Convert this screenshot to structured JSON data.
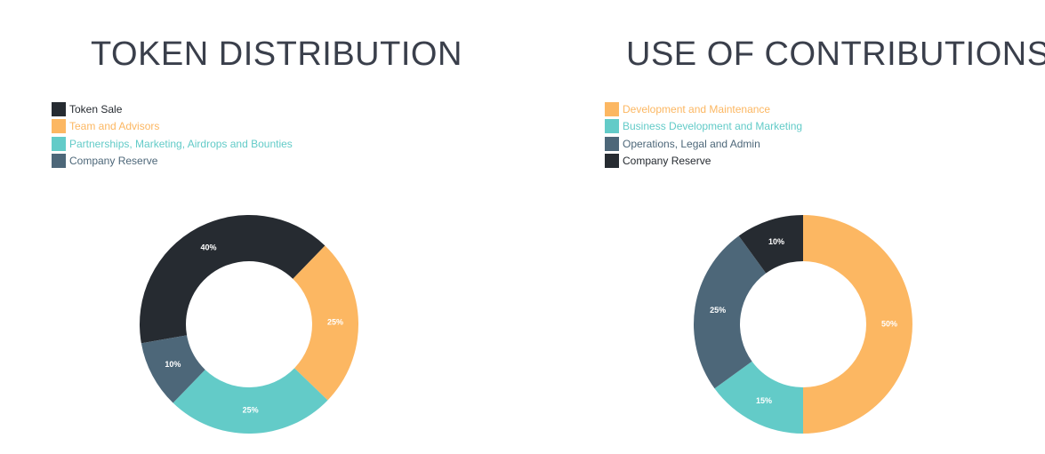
{
  "chart_data": [
    {
      "type": "pie",
      "title": "TOKEN DISTRIBUTION",
      "categories": [
        "Token Sale",
        "Team and Advisors",
        "Partnerships, Marketing, Airdrops and Bounties",
        "Company Reserve"
      ],
      "values": [
        40,
        25,
        25,
        10
      ],
      "value_labels": [
        "40%",
        "25%",
        "25%",
        "10%"
      ],
      "colors": [
        "#262b31",
        "#fcb762",
        "#63cbc8",
        "#4d6779"
      ],
      "legend_text_colors": [
        "#262b31",
        "#fcb762",
        "#63cbc8",
        "#4d6779"
      ],
      "legend": "top-left",
      "start_angle": -100,
      "donut": true
    },
    {
      "type": "pie",
      "title": "USE OF CONTRIBUTIONS",
      "categories": [
        "Development and Maintenance",
        "Business Development and Marketing",
        "Operations, Legal and Admin",
        "Company Reserve"
      ],
      "values": [
        50,
        15,
        25,
        10
      ],
      "value_labels": [
        "50%",
        "15%",
        "25%",
        "10%"
      ],
      "colors": [
        "#fcb762",
        "#63cbc8",
        "#4d6779",
        "#262b31"
      ],
      "legend_text_colors": [
        "#fcb762",
        "#63cbc8",
        "#4d6779",
        "#262b31"
      ],
      "legend": "top-left",
      "start_angle": 0,
      "donut": true
    }
  ]
}
